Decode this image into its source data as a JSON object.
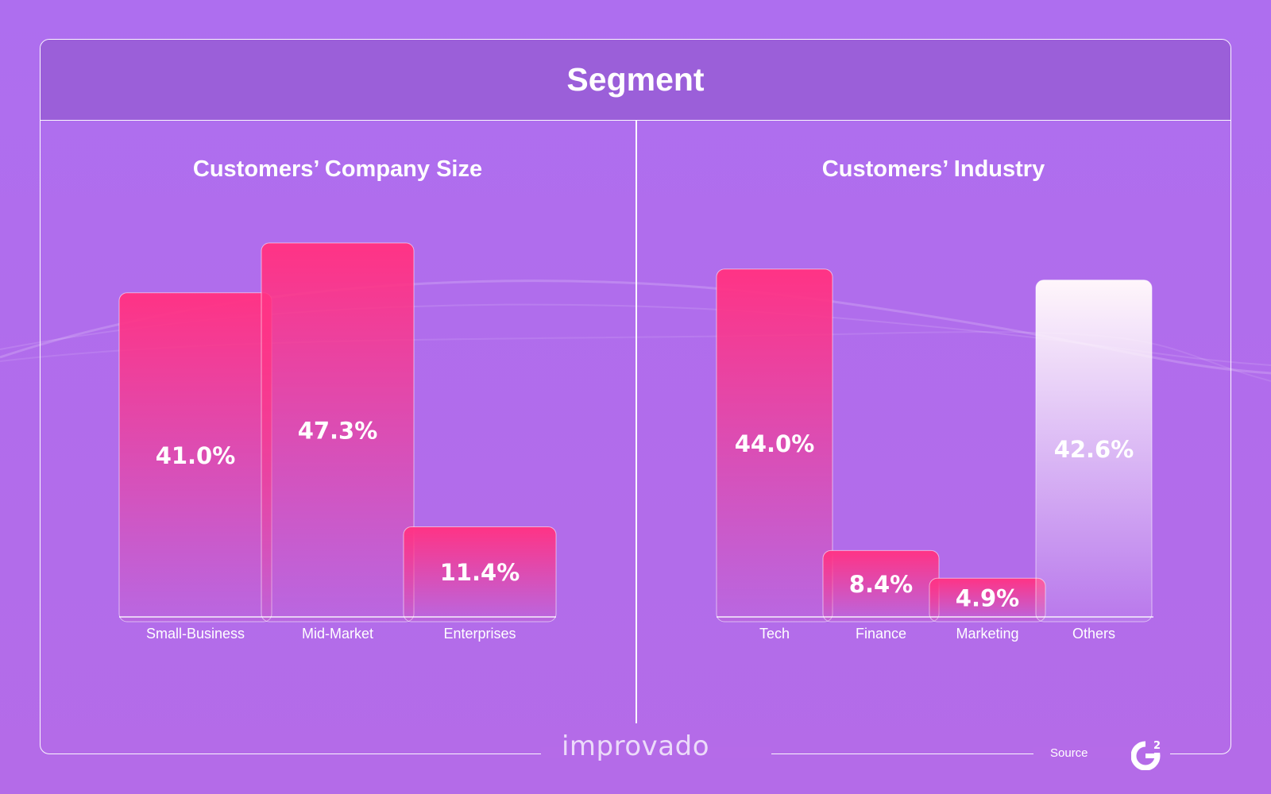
{
  "header": {
    "title": "Segment"
  },
  "footer": {
    "logo_text": "improvado",
    "source_label": "Source",
    "source_logo": "g2-icon"
  },
  "colors": {
    "bar_pink": "#ff3385",
    "bar_white": "#fff6fb",
    "background": "#ae6eef",
    "header_bg": "#9b5fd9"
  },
  "chart_data": [
    {
      "type": "bar",
      "title": "Customers’ Company Size",
      "categories": [
        "Small-Business",
        "Mid-Market",
        "Enterprises"
      ],
      "values": [
        41.0,
        47.3,
        11.4
      ],
      "value_labels": [
        "41.0%",
        "47.3%",
        "11.4%"
      ],
      "colors": [
        "pink",
        "pink",
        "pink"
      ],
      "xlabel": "",
      "ylabel": "",
      "ylim": [
        0,
        50
      ]
    },
    {
      "type": "bar",
      "title": "Customers’ Industry",
      "categories": [
        "Tech",
        "Finance",
        "Marketing",
        "Others"
      ],
      "values": [
        44.0,
        8.4,
        4.9,
        42.6
      ],
      "value_labels": [
        "44.0%",
        "8.4%",
        "4.9%",
        "42.6%"
      ],
      "colors": [
        "pink",
        "pink",
        "pink",
        "white"
      ],
      "xlabel": "",
      "ylabel": "",
      "ylim": [
        0,
        50
      ]
    }
  ]
}
